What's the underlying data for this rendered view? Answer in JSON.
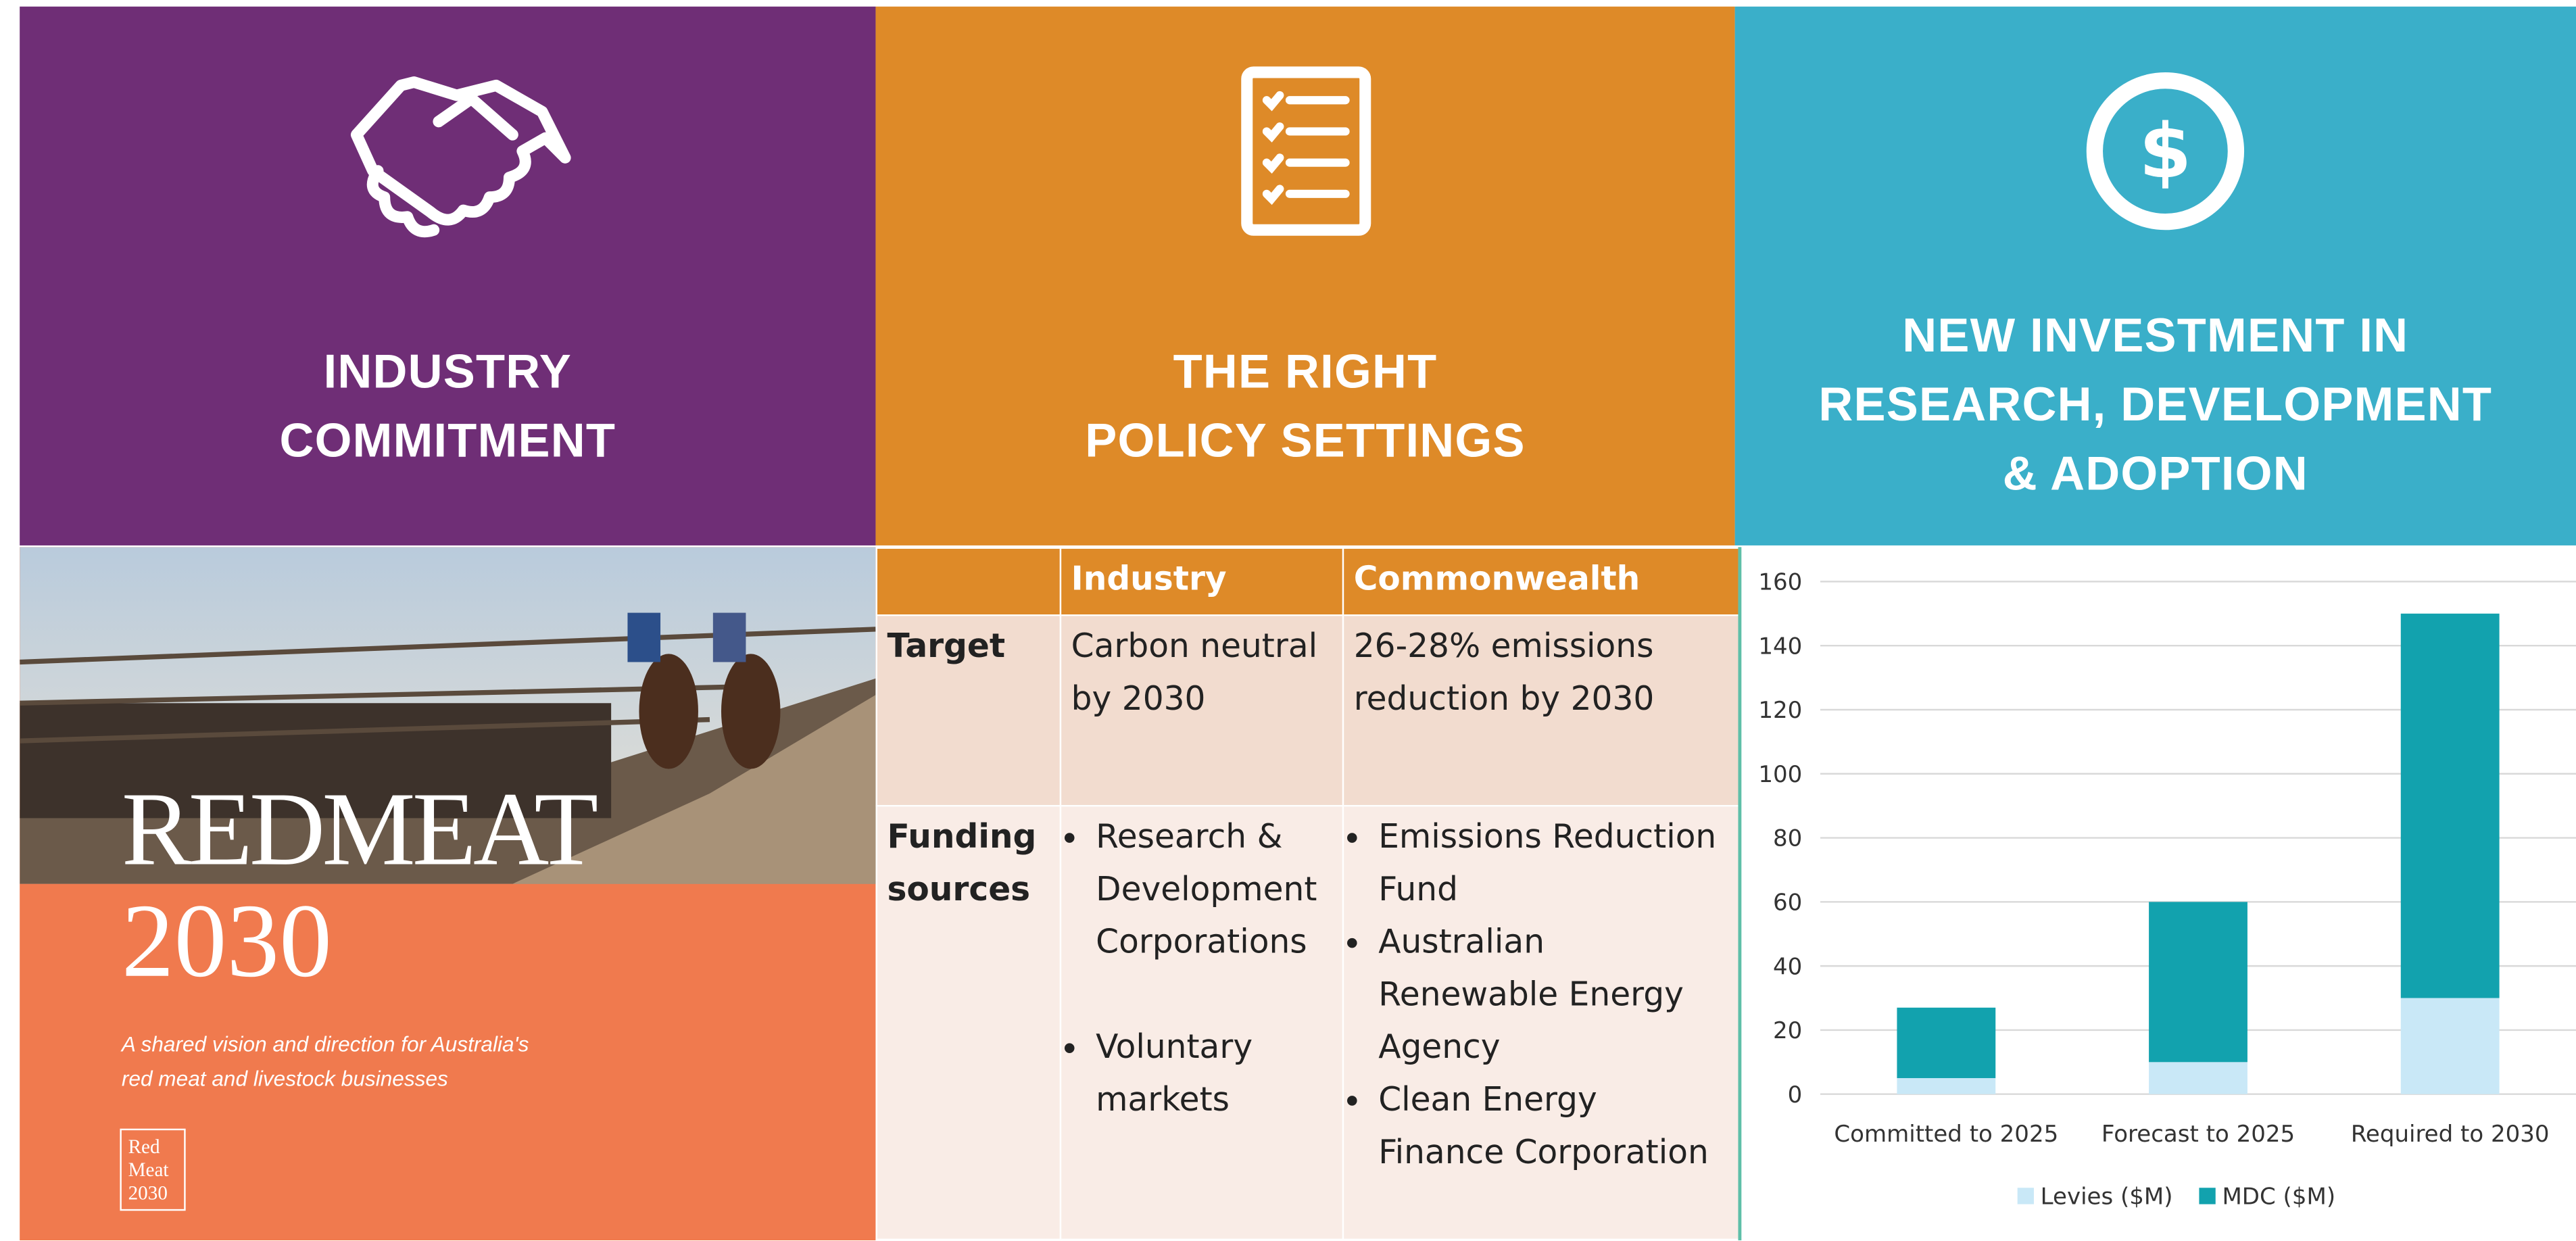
{
  "panels": [
    {
      "title_lines": [
        "INDUSTRY",
        "COMMITMENT"
      ]
    },
    {
      "title_lines": [
        "THE RIGHT",
        "POLICY SETTINGS"
      ]
    },
    {
      "title_lines": [
        "NEW INVESTMENT IN",
        "RESEARCH, DEVELOPMENT",
        "& ADOPTION"
      ]
    }
  ],
  "cover": {
    "title": "REDMEAT",
    "year": "2030",
    "subtitle_lines": [
      "A shared vision and direction for Australia's",
      "red meat and livestock businesses"
    ],
    "logo_lines": [
      "Red",
      "Meat",
      "2030"
    ]
  },
  "table": {
    "header": [
      "Industry",
      "Commonwealth"
    ],
    "rows": [
      {
        "label": "Target",
        "industry": [
          "Carbon neutral by 2030"
        ],
        "commonwealth": [
          "26-28% emissions reduction by 2030"
        ]
      },
      {
        "label": "Funding sources",
        "industry": [
          "Research & Development Corporations",
          "Voluntary markets"
        ],
        "commonwealth": [
          "Emissions Reduction Fund",
          "Australian Renewable Energy Agency",
          "Clean Energy Finance Corporation"
        ]
      }
    ]
  },
  "chart_data": {
    "type": "stacked-bar",
    "categories": [
      "Committed to 2025",
      "Forecast to 2025",
      "Required to 2030"
    ],
    "series": [
      {
        "name": "Levies ($M)",
        "color": "#c9e8f7",
        "values": [
          5,
          10,
          30
        ]
      },
      {
        "name": "MDC ($M)",
        "color": "#12a2ae",
        "values": [
          22,
          50,
          120
        ]
      }
    ],
    "ylim": [
      0,
      160
    ],
    "yticks": [
      0,
      20,
      40,
      60,
      80,
      100,
      120,
      140,
      160
    ],
    "grid": true,
    "legend": "bottom"
  }
}
